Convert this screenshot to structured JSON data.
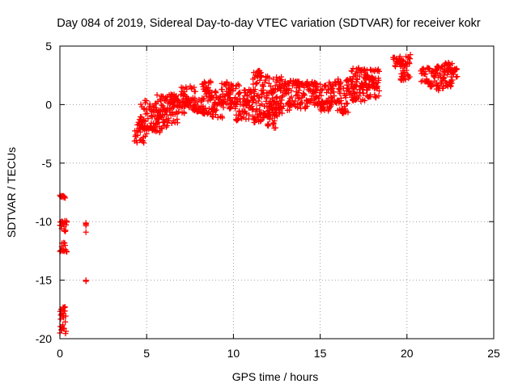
{
  "chart_data": {
    "type": "scatter",
    "title": "Day 084 of 2019, Sidereal Day-to-day VTEC variation (SDTVAR) for receiver kokr",
    "xlabel": "GPS time / hours",
    "ylabel": "SDTVAR / TECUs",
    "xlim": [
      0,
      25
    ],
    "ylim": [
      -20,
      5
    ],
    "xticks": [
      0,
      5,
      10,
      15,
      20,
      25
    ],
    "xtick_labels": [
      "0",
      "5",
      "10",
      "15",
      "20",
      "25"
    ],
    "yticks": [
      -20,
      -15,
      -10,
      -5,
      0,
      5
    ],
    "ytick_labels": [
      "-20",
      "-15",
      "-10",
      "-5",
      "0",
      "5"
    ],
    "grid": true,
    "marker": "+",
    "color": "#ff0000",
    "series": [
      {
        "name": "SDTVAR",
        "segments": [
          {
            "x0": 0.0,
            "x1": 0.3,
            "ymin": -8.0,
            "ymax": -7.7
          },
          {
            "x0": 0.0,
            "x1": 0.4,
            "ymin": -10.9,
            "ymax": -9.9
          },
          {
            "x0": 0.0,
            "x1": 0.4,
            "ymin": -12.6,
            "ymax": -11.7
          },
          {
            "x0": 0.0,
            "x1": 0.35,
            "ymin": -19.6,
            "ymax": -17.2
          },
          {
            "x0": 1.5,
            "x1": 1.5,
            "ymin": -10.9,
            "ymax": -10.1
          },
          {
            "x0": 1.5,
            "x1": 1.5,
            "ymin": -15.1,
            "ymax": -15.0
          },
          {
            "x0": 4.3,
            "x1": 5.0,
            "ymin": -3.3,
            "ymax": -1.2
          },
          {
            "x0": 4.6,
            "x1": 5.6,
            "ymin": -2.2,
            "ymax": 0.4
          },
          {
            "x0": 5.2,
            "x1": 6.2,
            "ymin": -2.4,
            "ymax": -0.3
          },
          {
            "x0": 5.6,
            "x1": 6.8,
            "ymin": -1.7,
            "ymax": 0.9
          },
          {
            "x0": 6.3,
            "x1": 7.3,
            "ymin": -0.9,
            "ymax": 0.9
          },
          {
            "x0": 7.0,
            "x1": 7.8,
            "ymin": -0.4,
            "ymax": 1.6
          },
          {
            "x0": 7.7,
            "x1": 8.3,
            "ymin": -0.7,
            "ymax": 0.6
          },
          {
            "x0": 8.2,
            "x1": 8.7,
            "ymin": 1.0,
            "ymax": 2.0
          },
          {
            "x0": 8.2,
            "x1": 9.0,
            "ymin": -0.9,
            "ymax": 1.2
          },
          {
            "x0": 8.7,
            "x1": 9.4,
            "ymin": -1.2,
            "ymax": 0.8
          },
          {
            "x0": 9.3,
            "x1": 9.9,
            "ymin": -0.4,
            "ymax": 2.1
          },
          {
            "x0": 9.7,
            "x1": 10.4,
            "ymin": 0.0,
            "ymax": 1.8
          },
          {
            "x0": 10.1,
            "x1": 10.9,
            "ymin": -1.4,
            "ymax": 0.6
          },
          {
            "x0": 10.6,
            "x1": 11.2,
            "ymin": -0.6,
            "ymax": 1.3
          },
          {
            "x0": 11.1,
            "x1": 11.6,
            "ymin": -1.6,
            "ymax": 3.0
          },
          {
            "x0": 11.5,
            "x1": 12.1,
            "ymin": -1.2,
            "ymax": 2.7
          },
          {
            "x0": 11.9,
            "x1": 12.5,
            "ymin": -2.1,
            "ymax": 1.6
          },
          {
            "x0": 12.2,
            "x1": 12.8,
            "ymin": -1.2,
            "ymax": 2.6
          },
          {
            "x0": 12.6,
            "x1": 13.3,
            "ymin": -0.6,
            "ymax": 2.0
          },
          {
            "x0": 13.1,
            "x1": 13.8,
            "ymin": -0.2,
            "ymax": 2.2
          },
          {
            "x0": 13.6,
            "x1": 14.3,
            "ymin": -0.4,
            "ymax": 1.9
          },
          {
            "x0": 14.2,
            "x1": 14.8,
            "ymin": 0.1,
            "ymax": 2.0
          },
          {
            "x0": 14.6,
            "x1": 15.2,
            "ymin": -0.2,
            "ymax": 1.8
          },
          {
            "x0": 15.0,
            "x1": 15.7,
            "ymin": -0.6,
            "ymax": 1.8
          },
          {
            "x0": 15.5,
            "x1": 16.2,
            "ymin": 0.0,
            "ymax": 2.1
          },
          {
            "x0": 16.0,
            "x1": 16.6,
            "ymin": -0.8,
            "ymax": 2.2
          },
          {
            "x0": 16.5,
            "x1": 17.1,
            "ymin": 0.3,
            "ymax": 2.3
          },
          {
            "x0": 16.8,
            "x1": 17.6,
            "ymin": 0.2,
            "ymax": 3.2
          },
          {
            "x0": 17.3,
            "x1": 18.4,
            "ymin": 1.4,
            "ymax": 3.1
          },
          {
            "x0": 17.6,
            "x1": 18.4,
            "ymin": 0.5,
            "ymax": 2.3
          },
          {
            "x0": 19.2,
            "x1": 19.8,
            "ymin": 3.2,
            "ymax": 4.1
          },
          {
            "x0": 19.6,
            "x1": 20.2,
            "ymin": 2.0,
            "ymax": 4.3
          },
          {
            "x0": 20.8,
            "x1": 21.3,
            "ymin": 1.9,
            "ymax": 3.2
          },
          {
            "x0": 21.2,
            "x1": 21.8,
            "ymin": 1.5,
            "ymax": 3.0
          },
          {
            "x0": 21.6,
            "x1": 22.2,
            "ymin": 1.1,
            "ymax": 3.4
          },
          {
            "x0": 22.1,
            "x1": 22.6,
            "ymin": 1.5,
            "ymax": 3.7
          },
          {
            "x0": 22.4,
            "x1": 22.9,
            "ymin": 1.8,
            "ymax": 3.2
          }
        ]
      }
    ]
  }
}
